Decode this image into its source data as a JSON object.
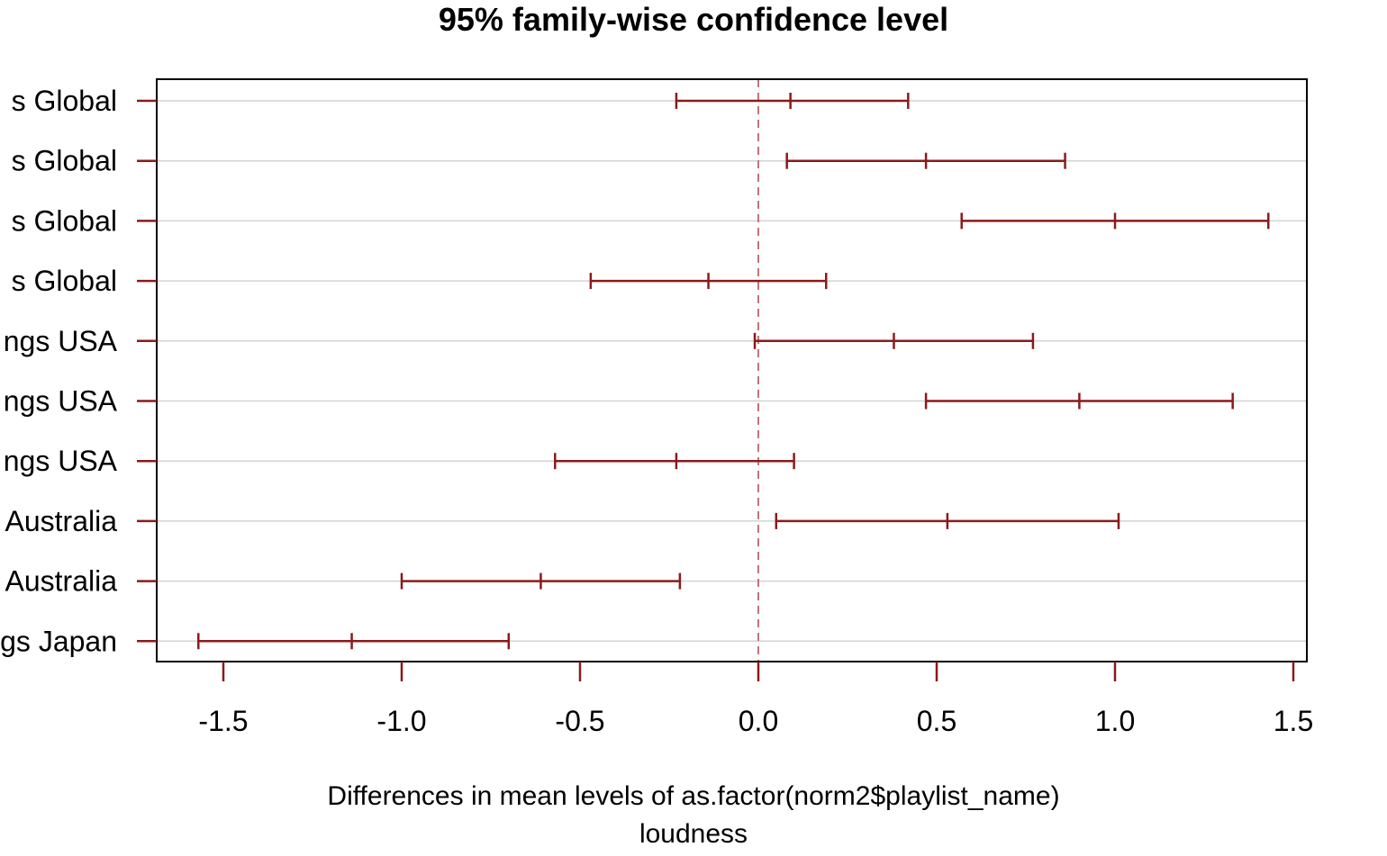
{
  "chart_data": {
    "type": "errorbar",
    "title": "95% family-wise confidence level",
    "xlabel": "Differences in mean levels of as.factor(norm2$playlist_name)",
    "xlabel2": "loudness",
    "xlim": [
      -1.7,
      1.55
    ],
    "xticks": [
      -1.5,
      -1.0,
      -0.5,
      0.0,
      0.5,
      1.0,
      1.5
    ],
    "xtick_labels": [
      "-1.5",
      "-1.0",
      "-0.5",
      "0.0",
      "0.5",
      "1.0",
      "1.5"
    ],
    "reference_line": 0,
    "grid": true,
    "color": "#8b1a1a",
    "rows": [
      {
        "label": "s Global",
        "lwr": -0.23,
        "estimate": 0.09,
        "upr": 0.42
      },
      {
        "label": "s Global",
        "lwr": 0.08,
        "estimate": 0.47,
        "upr": 0.86
      },
      {
        "label": "s Global",
        "lwr": 0.57,
        "estimate": 1.0,
        "upr": 1.43
      },
      {
        "label": "s Global",
        "lwr": -0.47,
        "estimate": -0.14,
        "upr": 0.19
      },
      {
        "label": "ngs USA",
        "lwr": -0.01,
        "estimate": 0.38,
        "upr": 0.77
      },
      {
        "label": "ngs USA",
        "lwr": 0.47,
        "estimate": 0.9,
        "upr": 1.33
      },
      {
        "label": "ngs USA",
        "lwr": -0.57,
        "estimate": -0.23,
        "upr": 0.1
      },
      {
        "label": "Australia",
        "lwr": 0.05,
        "estimate": 0.53,
        "upr": 1.01
      },
      {
        "label": "Australia",
        "lwr": -1.0,
        "estimate": -0.61,
        "upr": -0.22
      },
      {
        "label": "gs Japan",
        "lwr": -1.57,
        "estimate": -1.14,
        "upr": -0.7
      }
    ]
  }
}
